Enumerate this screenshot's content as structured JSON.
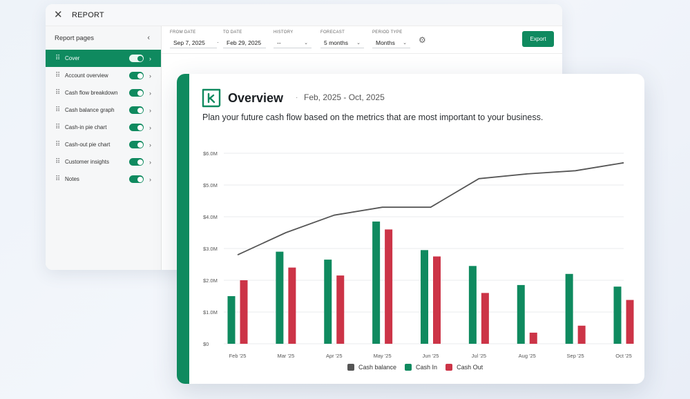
{
  "report": {
    "title": "REPORT",
    "sidebar_title": "Report pages",
    "pages": [
      {
        "label": "Cover",
        "enabled": true,
        "active": true
      },
      {
        "label": "Account overview",
        "enabled": true,
        "active": false
      },
      {
        "label": "Cash flow breakdown",
        "enabled": true,
        "active": false
      },
      {
        "label": "Cash balance graph",
        "enabled": true,
        "active": false
      },
      {
        "label": "Cash-in pie chart",
        "enabled": true,
        "active": false
      },
      {
        "label": "Cash-out pie chart",
        "enabled": true,
        "active": false
      },
      {
        "label": "Customer insights",
        "enabled": true,
        "active": false
      },
      {
        "label": "Notes",
        "enabled": true,
        "active": false
      }
    ],
    "filters": {
      "from_date": {
        "label": "FROM DATE",
        "value": "Sep 7, 2025"
      },
      "to_date": {
        "label": "TO DATE",
        "value": "Feb 29, 2025"
      },
      "history": {
        "label": "HISTORY",
        "value": "--"
      },
      "forecast": {
        "label": "FORECAST",
        "value": "5 months"
      },
      "period_type": {
        "label": "PERIOD TYPE",
        "value": "Months"
      }
    },
    "export_label": "Export"
  },
  "overview": {
    "title": "Overview",
    "separator": "·",
    "date_range": "Feb, 2025 - Oct, 2025",
    "subtitle": "Plan your future cash flow based on the metrics that are most important to your business."
  },
  "colors": {
    "accent": "#0f8a5f",
    "cash_in": "#0f8a5f",
    "cash_out": "#cc3447",
    "cash_balance": "#555555"
  },
  "chart_data": {
    "type": "bar",
    "categories": [
      "Feb '25",
      "Mar '25",
      "Apr '25",
      "May '25",
      "Jun '25",
      "Jul '25",
      "Aug '25",
      "Sep '25",
      "Oct '25"
    ],
    "y_ticks": [
      "$0",
      "$1.0M",
      "$2.0M",
      "$3.0M",
      "$4.0M",
      "$5.0M",
      "$6.0M"
    ],
    "ylim": [
      0,
      6
    ],
    "y_unit": "$M",
    "grid": true,
    "legend_position": "bottom",
    "series": [
      {
        "name": "Cash balance",
        "type": "line",
        "color": "#555555",
        "values": [
          2.8,
          3.5,
          4.05,
          4.3,
          4.3,
          5.2,
          5.35,
          5.45,
          5.7
        ]
      },
      {
        "name": "Cash In",
        "type": "bar",
        "color": "#0f8a5f",
        "values": [
          1.5,
          2.9,
          2.65,
          3.85,
          2.95,
          2.45,
          1.85,
          2.2,
          1.8
        ]
      },
      {
        "name": "Cash Out",
        "type": "bar",
        "color": "#cc3447",
        "values": [
          2.0,
          2.4,
          2.15,
          3.6,
          2.75,
          1.6,
          0.35,
          0.57,
          1.38
        ]
      }
    ]
  }
}
